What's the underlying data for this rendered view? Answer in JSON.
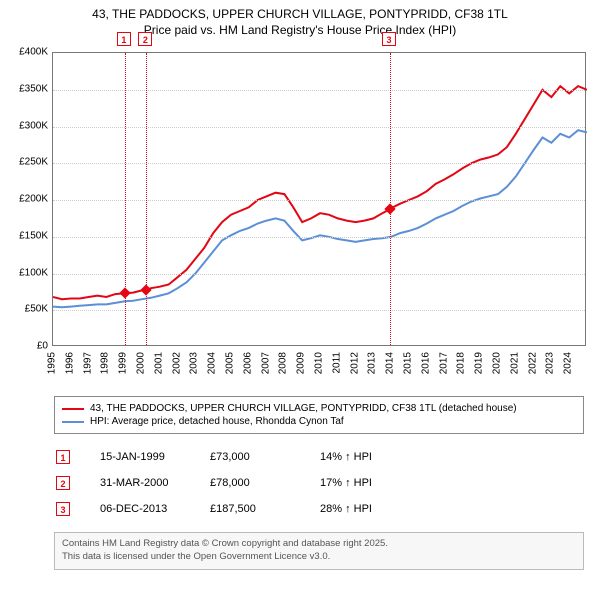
{
  "title_line1": "43, THE PADDOCKS, UPPER CHURCH VILLAGE, PONTYPRIDD, CF38 1TL",
  "title_line2": "Price paid vs. HM Land Registry's House Price Index (HPI)",
  "chart": {
    "type": "line",
    "background_color": "#ffffff",
    "grid_color": "#cccccc",
    "axis_color": "#777777",
    "x_min": 1995,
    "x_max": 2025,
    "y_min": 0,
    "y_max": 400000,
    "y_ticks": [
      0,
      50000,
      100000,
      150000,
      200000,
      250000,
      300000,
      350000,
      400000
    ],
    "y_tick_labels": [
      "£0",
      "£50K",
      "£100K",
      "£150K",
      "£200K",
      "£250K",
      "£300K",
      "£350K",
      "£400K"
    ],
    "x_ticks": [
      1995,
      1996,
      1997,
      1998,
      1999,
      2000,
      2001,
      2002,
      2003,
      2004,
      2005,
      2006,
      2007,
      2008,
      2009,
      2010,
      2011,
      2012,
      2013,
      2014,
      2015,
      2016,
      2017,
      2018,
      2019,
      2020,
      2021,
      2022,
      2023,
      2024
    ],
    "series": [
      {
        "name": "price_paid",
        "color": "#e30613",
        "width": 2,
        "points": [
          [
            1995.0,
            68000
          ],
          [
            1995.5,
            65000
          ],
          [
            1996.0,
            66000
          ],
          [
            1996.5,
            66000
          ],
          [
            1997.0,
            68000
          ],
          [
            1997.5,
            70000
          ],
          [
            1998.0,
            68000
          ],
          [
            1998.5,
            72000
          ],
          [
            1999.0,
            73000
          ],
          [
            1999.5,
            74000
          ],
          [
            2000.0,
            77000
          ],
          [
            2000.25,
            78000
          ],
          [
            2000.5,
            80000
          ],
          [
            2001.0,
            82000
          ],
          [
            2001.5,
            85000
          ],
          [
            2002.0,
            95000
          ],
          [
            2002.5,
            105000
          ],
          [
            2003.0,
            120000
          ],
          [
            2003.5,
            135000
          ],
          [
            2004.0,
            155000
          ],
          [
            2004.5,
            170000
          ],
          [
            2005.0,
            180000
          ],
          [
            2005.5,
            185000
          ],
          [
            2006.0,
            190000
          ],
          [
            2006.5,
            200000
          ],
          [
            2007.0,
            205000
          ],
          [
            2007.5,
            210000
          ],
          [
            2008.0,
            208000
          ],
          [
            2008.5,
            190000
          ],
          [
            2009.0,
            170000
          ],
          [
            2009.5,
            175000
          ],
          [
            2010.0,
            182000
          ],
          [
            2010.5,
            180000
          ],
          [
            2011.0,
            175000
          ],
          [
            2011.5,
            172000
          ],
          [
            2012.0,
            170000
          ],
          [
            2012.5,
            172000
          ],
          [
            2013.0,
            175000
          ],
          [
            2013.5,
            182000
          ],
          [
            2013.93,
            187500
          ],
          [
            2014.0,
            189000
          ],
          [
            2014.5,
            195000
          ],
          [
            2015.0,
            200000
          ],
          [
            2015.5,
            205000
          ],
          [
            2016.0,
            212000
          ],
          [
            2016.5,
            222000
          ],
          [
            2017.0,
            228000
          ],
          [
            2017.5,
            235000
          ],
          [
            2018.0,
            243000
          ],
          [
            2018.5,
            250000
          ],
          [
            2019.0,
            255000
          ],
          [
            2019.5,
            258000
          ],
          [
            2020.0,
            262000
          ],
          [
            2020.5,
            272000
          ],
          [
            2021.0,
            290000
          ],
          [
            2021.5,
            310000
          ],
          [
            2022.0,
            330000
          ],
          [
            2022.5,
            350000
          ],
          [
            2023.0,
            340000
          ],
          [
            2023.5,
            355000
          ],
          [
            2024.0,
            345000
          ],
          [
            2024.5,
            355000
          ],
          [
            2025.0,
            350000
          ]
        ]
      },
      {
        "name": "hpi",
        "color": "#5b8fd6",
        "width": 2,
        "points": [
          [
            1995.0,
            55000
          ],
          [
            1995.5,
            54000
          ],
          [
            1996.0,
            55000
          ],
          [
            1996.5,
            56000
          ],
          [
            1997.0,
            57000
          ],
          [
            1997.5,
            58000
          ],
          [
            1998.0,
            58000
          ],
          [
            1998.5,
            60000
          ],
          [
            1999.0,
            62000
          ],
          [
            1999.5,
            63000
          ],
          [
            2000.0,
            65000
          ],
          [
            2000.5,
            67000
          ],
          [
            2001.0,
            70000
          ],
          [
            2001.5,
            73000
          ],
          [
            2002.0,
            80000
          ],
          [
            2002.5,
            88000
          ],
          [
            2003.0,
            100000
          ],
          [
            2003.5,
            115000
          ],
          [
            2004.0,
            130000
          ],
          [
            2004.5,
            145000
          ],
          [
            2005.0,
            152000
          ],
          [
            2005.5,
            158000
          ],
          [
            2006.0,
            162000
          ],
          [
            2006.5,
            168000
          ],
          [
            2007.0,
            172000
          ],
          [
            2007.5,
            175000
          ],
          [
            2008.0,
            172000
          ],
          [
            2008.5,
            158000
          ],
          [
            2009.0,
            145000
          ],
          [
            2009.5,
            148000
          ],
          [
            2010.0,
            152000
          ],
          [
            2010.5,
            150000
          ],
          [
            2011.0,
            147000
          ],
          [
            2011.5,
            145000
          ],
          [
            2012.0,
            143000
          ],
          [
            2012.5,
            145000
          ],
          [
            2013.0,
            147000
          ],
          [
            2013.5,
            148000
          ],
          [
            2014.0,
            150000
          ],
          [
            2014.5,
            155000
          ],
          [
            2015.0,
            158000
          ],
          [
            2015.5,
            162000
          ],
          [
            2016.0,
            168000
          ],
          [
            2016.5,
            175000
          ],
          [
            2017.0,
            180000
          ],
          [
            2017.5,
            185000
          ],
          [
            2018.0,
            192000
          ],
          [
            2018.5,
            198000
          ],
          [
            2019.0,
            202000
          ],
          [
            2019.5,
            205000
          ],
          [
            2020.0,
            208000
          ],
          [
            2020.5,
            218000
          ],
          [
            2021.0,
            232000
          ],
          [
            2021.5,
            250000
          ],
          [
            2022.0,
            268000
          ],
          [
            2022.5,
            285000
          ],
          [
            2023.0,
            278000
          ],
          [
            2023.5,
            290000
          ],
          [
            2024.0,
            285000
          ],
          [
            2024.5,
            295000
          ],
          [
            2025.0,
            292000
          ]
        ]
      }
    ],
    "event_lines": [
      {
        "num": "1",
        "x": 1999.04,
        "color": "#e30613"
      },
      {
        "num": "2",
        "x": 2000.25,
        "color": "#e30613"
      },
      {
        "num": "3",
        "x": 2013.93,
        "color": "#e30613"
      }
    ],
    "markers": [
      {
        "x": 1999.04,
        "y": 73000,
        "color": "#e30613"
      },
      {
        "x": 2000.25,
        "y": 78000,
        "color": "#e30613"
      },
      {
        "x": 2013.93,
        "y": 187500,
        "color": "#e30613"
      }
    ]
  },
  "legend": {
    "items": [
      {
        "color": "#e30613",
        "label": "43, THE PADDOCKS, UPPER CHURCH VILLAGE, PONTYPRIDD, CF38 1TL (detached house)"
      },
      {
        "color": "#5b8fd6",
        "label": "HPI: Average price, detached house, Rhondda Cynon Taf"
      }
    ]
  },
  "events_table": [
    {
      "num": "1",
      "color": "#e30613",
      "date": "15-JAN-1999",
      "price": "£73,000",
      "diff": "14%",
      "diff_label": "HPI"
    },
    {
      "num": "2",
      "color": "#e30613",
      "date": "31-MAR-2000",
      "price": "£78,000",
      "diff": "17%",
      "diff_label": "HPI"
    },
    {
      "num": "3",
      "color": "#e30613",
      "date": "06-DEC-2013",
      "price": "£187,500",
      "diff": "28%",
      "diff_label": "HPI"
    }
  ],
  "footer_line1": "Contains HM Land Registry data © Crown copyright and database right 2025.",
  "footer_line2": "This data is licensed under the Open Government Licence v3.0."
}
